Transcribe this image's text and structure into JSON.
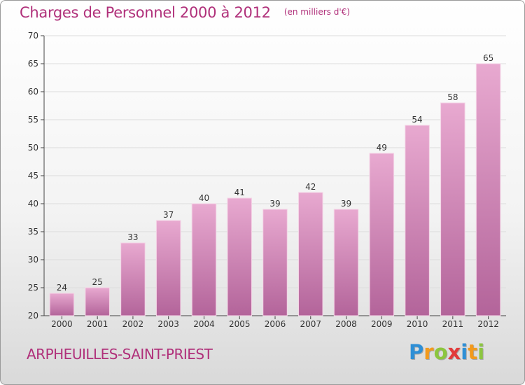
{
  "chart_data": {
    "type": "bar",
    "title": "Charges de Personnel 2000 à 2012",
    "unit": "(en milliers d'€)",
    "categories": [
      "2000",
      "2001",
      "2002",
      "2003",
      "2004",
      "2005",
      "2006",
      "2007",
      "2008",
      "2009",
      "2010",
      "2011",
      "2012"
    ],
    "values": [
      24,
      25,
      33,
      37,
      40,
      41,
      39,
      42,
      39,
      49,
      54,
      58,
      65
    ],
    "ylim": [
      20,
      70
    ],
    "yticks": [
      20,
      25,
      30,
      35,
      40,
      45,
      50,
      55,
      60,
      65,
      70
    ],
    "grid": true,
    "bar_color_top": "#e8a9d0",
    "bar_color_bottom": "#b3649a"
  },
  "place_name": "ARPHEUILLES-SAINT-PRIEST",
  "logo": {
    "letters": [
      "P",
      "r",
      "o",
      "x",
      "i",
      "t",
      "i"
    ],
    "colors": [
      "#2e8fd6",
      "#f29a1d",
      "#8cc63f",
      "#e23b3b",
      "#2e8fd6",
      "#f29a1d",
      "#8cc63f"
    ]
  }
}
